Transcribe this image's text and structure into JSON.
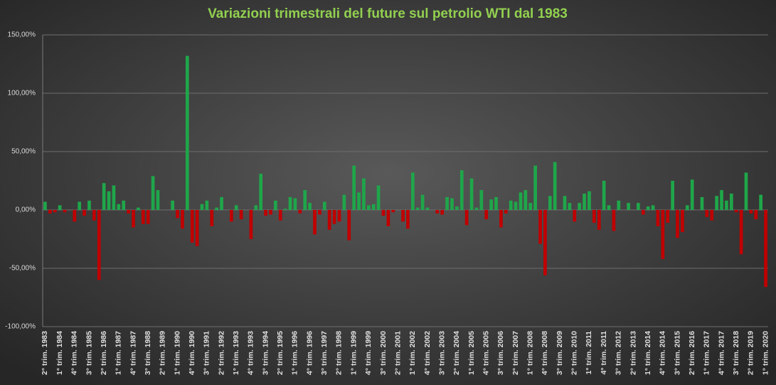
{
  "chart_data": {
    "type": "bar",
    "title": "Variazioni trimestrali del future sul petrolio WTI dal 1983",
    "categories": [
      "2° trim. 1983",
      null,
      null,
      "1° trim. 1984",
      null,
      null,
      "4° trim. 1984",
      null,
      null,
      "3° trim. 1985",
      null,
      null,
      "2° trim. 1986",
      null,
      null,
      "1° trim. 1987",
      null,
      null,
      "4° trim. 1987",
      null,
      null,
      "3° trim. 1988",
      null,
      null,
      "2° trim. 1989",
      null,
      null,
      "1° trim. 1990",
      null,
      null,
      "4° trim. 1990",
      null,
      null,
      "3° trim. 1991",
      null,
      null,
      "2° trim. 1992",
      null,
      null,
      "1° trim. 1993",
      null,
      null,
      "4° trim. 1993",
      null,
      null,
      "3° trim. 1994",
      null,
      null,
      "2° trim. 1995",
      null,
      null,
      "1° trim. 1996",
      null,
      null,
      "4° trim. 1996",
      null,
      null,
      "3° trim. 1997",
      null,
      null,
      "2° trim. 1998",
      null,
      null,
      "1° trim. 1999",
      null,
      null,
      "4° trim. 1999",
      null,
      null,
      "3° trim. 2000",
      null,
      null,
      "2° trim. 2001",
      null,
      null,
      "1° trim. 2002",
      null,
      null,
      "4° trim. 2002",
      null,
      null,
      "3° trim. 2003",
      null,
      null,
      "2° trim. 2004",
      null,
      null,
      "1° trim. 2005",
      null,
      null,
      "4° trim. 2005",
      null,
      null,
      "3° trim. 2006",
      null,
      null,
      "2° trim. 2007",
      null,
      null,
      "1° trim. 2008",
      null,
      null,
      "4° trim. 2008",
      null,
      null,
      "3° trim. 2009",
      null,
      null,
      "2° trim. 2010",
      null,
      null,
      "1° trim. 2011",
      null,
      null,
      "4° trim. 2011",
      null,
      null,
      "3° trim. 2012",
      null,
      null,
      "2° trim. 2013",
      null,
      null,
      "1° trim. 2014",
      null,
      null,
      "4° trim. 2014",
      null,
      null,
      "3° trim. 2015",
      null,
      null,
      "2° trim. 2016",
      null,
      null,
      "1° trim. 2017",
      null,
      null,
      "4° trim. 2017",
      null,
      null,
      "3° trim. 2018",
      null,
      null,
      "2° trim. 2019",
      null,
      null,
      "1° trim. 2020"
    ],
    "values": [
      7,
      -3,
      -2,
      4,
      -2,
      0,
      -10,
      7,
      -5,
      8,
      -9,
      -60,
      23,
      16,
      21,
      5,
      8,
      -3,
      -15,
      2,
      -12,
      -12,
      29,
      17,
      0,
      0,
      8,
      -7,
      -16,
      132,
      -28,
      -31,
      5,
      8,
      -14,
      2,
      11,
      0,
      -10,
      4,
      -8,
      0,
      -25,
      4,
      31,
      -5,
      -4,
      8,
      -9,
      1,
      11,
      10,
      -3,
      17,
      6,
      -21,
      -4,
      7,
      -17,
      -12,
      -10,
      13,
      -26,
      38,
      15,
      27,
      4,
      5,
      21,
      -5,
      -14,
      -2,
      0,
      -10,
      -16,
      32,
      2,
      13,
      2,
      0,
      -3,
      -4,
      11,
      10,
      3,
      34,
      -13,
      27,
      2,
      17,
      -8,
      9,
      11,
      -15,
      -3,
      8,
      7,
      15,
      17,
      6,
      38,
      -29,
      -56,
      12,
      41,
      0,
      12,
      6,
      -10,
      6,
      14,
      16,
      -11,
      -17,
      25,
      4,
      -18,
      8,
      0,
      6,
      0,
      6,
      -4,
      3,
      4,
      -14,
      -42,
      -11,
      25,
      -24,
      -19,
      4,
      26,
      0,
      11,
      -6,
      -9,
      12,
      17,
      8,
      14,
      -2,
      -38,
      32,
      -3,
      -8,
      13,
      -66
    ],
    "positive_color": "#1fa64a",
    "negative_color": "#c00000",
    "ylim": [
      -100,
      150
    ],
    "yticks": [
      {
        "value": -100,
        "label": "-100,00%"
      },
      {
        "value": -50,
        "label": "-50,00%"
      },
      {
        "value": 0,
        "label": "0,00%"
      },
      {
        "value": 50,
        "label": "50,00%"
      },
      {
        "value": 100,
        "label": "100,00%"
      },
      {
        "value": 150,
        "label": "150,00%"
      }
    ],
    "grid": true
  }
}
